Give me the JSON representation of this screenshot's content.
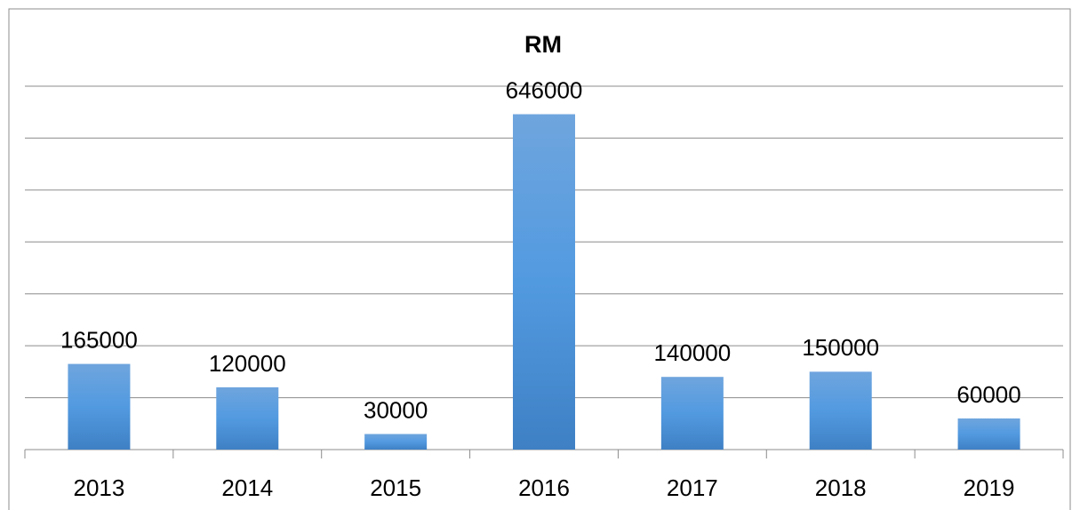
{
  "chart_data": {
    "type": "bar",
    "title": "RM",
    "categories": [
      "2013",
      "2014",
      "2015",
      "2016",
      "2017",
      "2018",
      "2019"
    ],
    "values": [
      165000,
      120000,
      30000,
      646000,
      140000,
      150000,
      60000
    ],
    "color": "#4a8fd6",
    "ylim": [
      0,
      700000
    ],
    "yticks": [
      0,
      100000,
      200000,
      300000,
      400000,
      500000,
      600000,
      700000
    ],
    "grid": true
  }
}
